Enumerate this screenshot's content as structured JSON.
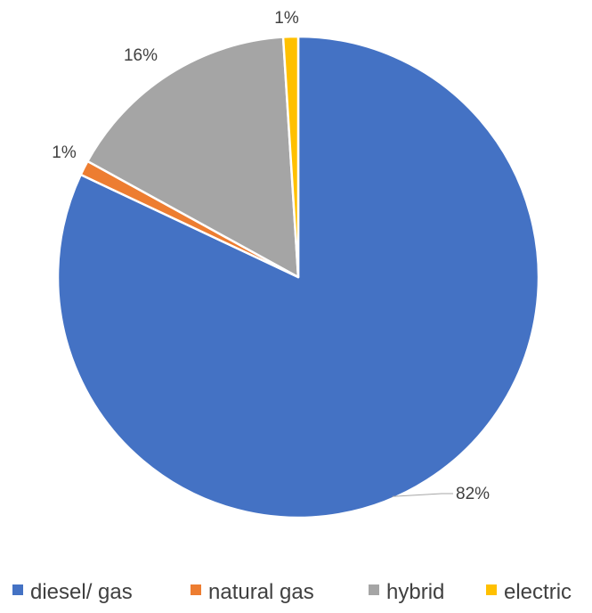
{
  "chart_data": {
    "type": "pie",
    "categories": [
      "diesel/ gas",
      "natural gas",
      "hybrid",
      "electric"
    ],
    "values": [
      82,
      1,
      16,
      1
    ],
    "data_labels": [
      "82%",
      "1%",
      "16%",
      "1%"
    ],
    "colors": [
      "#4472C4",
      "#ED7D31",
      "#A5A5A5",
      "#FFC000"
    ],
    "title": "",
    "legend": {
      "placement": "bottom",
      "entries": [
        "diesel/ gas",
        "natural gas",
        "hybrid",
        "electric"
      ]
    }
  }
}
